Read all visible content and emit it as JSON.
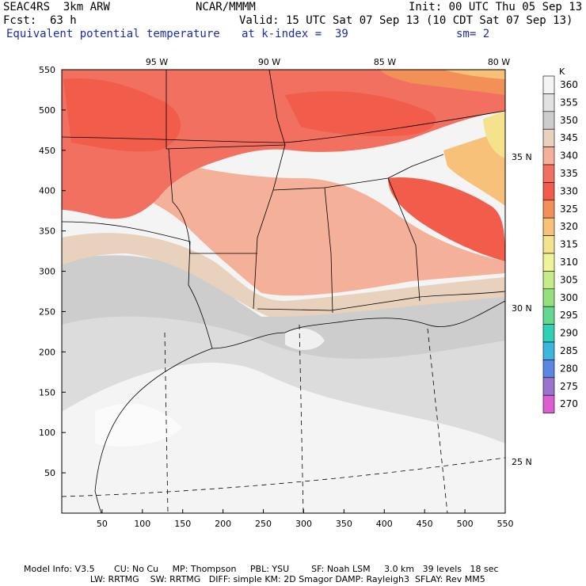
{
  "header": {
    "model": "SEAC4RS  3km ARW",
    "org": "NCAR/MMMM",
    "init": "Init: 00 UTC Thu 05 Sep 13",
    "fcst": "Fcst:  63 h",
    "valid": "Valid: 15 UTC Sat 07 Sep 13 (10 CDT Sat 07 Sep 13)",
    "field": "Equivalent potential temperature",
    "level": "at k-index =  39",
    "smooth": "sm= 2"
  },
  "axes": {
    "x_ticks": [
      "50",
      "100",
      "150",
      "200",
      "250",
      "300",
      "350",
      "400",
      "450",
      "500",
      "550"
    ],
    "y_ticks": [
      "50",
      "100",
      "150",
      "200",
      "250",
      "300",
      "350",
      "400",
      "450",
      "500",
      "550"
    ],
    "lon_labels": [
      "95 W",
      "90 W",
      "85 W",
      "80 W"
    ],
    "lat_labels": [
      "35 N",
      "30 N",
      "25 N"
    ]
  },
  "colorbar": {
    "unit": "K",
    "levels": [
      "360",
      "355",
      "350",
      "345",
      "340",
      "335",
      "330",
      "325",
      "320",
      "315",
      "310",
      "305",
      "300",
      "295",
      "290",
      "285",
      "280",
      "275",
      "270"
    ],
    "colors": [
      "#f4f4f4",
      "#e2e2e2",
      "#cdcdcd",
      "#e8d2bd",
      "#f5b09a",
      "#f2705f",
      "#f25c4a",
      "#f39058",
      "#f7c17a",
      "#f4e28c",
      "#eff39a",
      "#c5eb8a",
      "#93e07c",
      "#62d890",
      "#2fd0b4",
      "#3cb6dd",
      "#5a87e0",
      "#9a73cd",
      "#dc5fd2"
    ]
  },
  "footer": {
    "line1": "Model Info: V3.5       CU: No Cu     MP: Thompson     PBL: YSU        SF: Noah LSM     3.0 km   39 levels   18 sec",
    "line2": "                        LW: RRTMG    SW: RRTMG   DIFF: simple KM: 2D Smagor DAMP: Rayleigh3  SFLAY: Rev MM5"
  }
}
